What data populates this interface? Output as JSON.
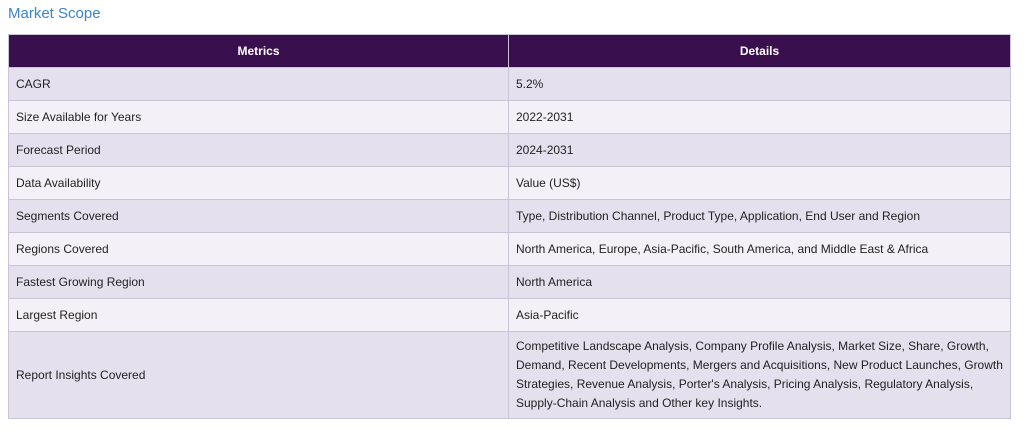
{
  "section_title": "Market Scope",
  "table": {
    "headers": [
      "Metrics",
      "Details"
    ],
    "rows": [
      {
        "metric": "CAGR",
        "detail": "5.2%"
      },
      {
        "metric": "Size Available for Years",
        "detail": "2022-2031"
      },
      {
        "metric": "Forecast Period",
        "detail": "2024-2031"
      },
      {
        "metric": "Data Availability",
        "detail": "Value (US$)"
      },
      {
        "metric": "Segments Covered",
        "detail": "Type, Distribution Channel, Product Type, Application, End User and Region"
      },
      {
        "metric": "Regions Covered",
        "detail": "North America, Europe, Asia-Pacific, South America, and Middle East & Africa"
      },
      {
        "metric": "Fastest Growing Region",
        "detail": "North America"
      },
      {
        "metric": "Largest Region",
        "detail": "Asia-Pacific"
      },
      {
        "metric": "Report Insights Covered",
        "detail": "Competitive Landscape Analysis, Company Profile Analysis, Market Size, Share, Growth, Demand, Recent Developments, Mergers and Acquisitions, New Product Launches, Growth Strategies, Revenue Analysis, Porter's Analysis, Pricing Analysis, Regulatory Analysis, Supply-Chain Analysis and Other key Insights."
      }
    ]
  },
  "colors": {
    "title": "#3a86c8",
    "header_bg": "#3a0f4e",
    "row_odd": "#e4e0ee",
    "row_even": "#f3f1f7",
    "border": "#c9c4d6"
  }
}
